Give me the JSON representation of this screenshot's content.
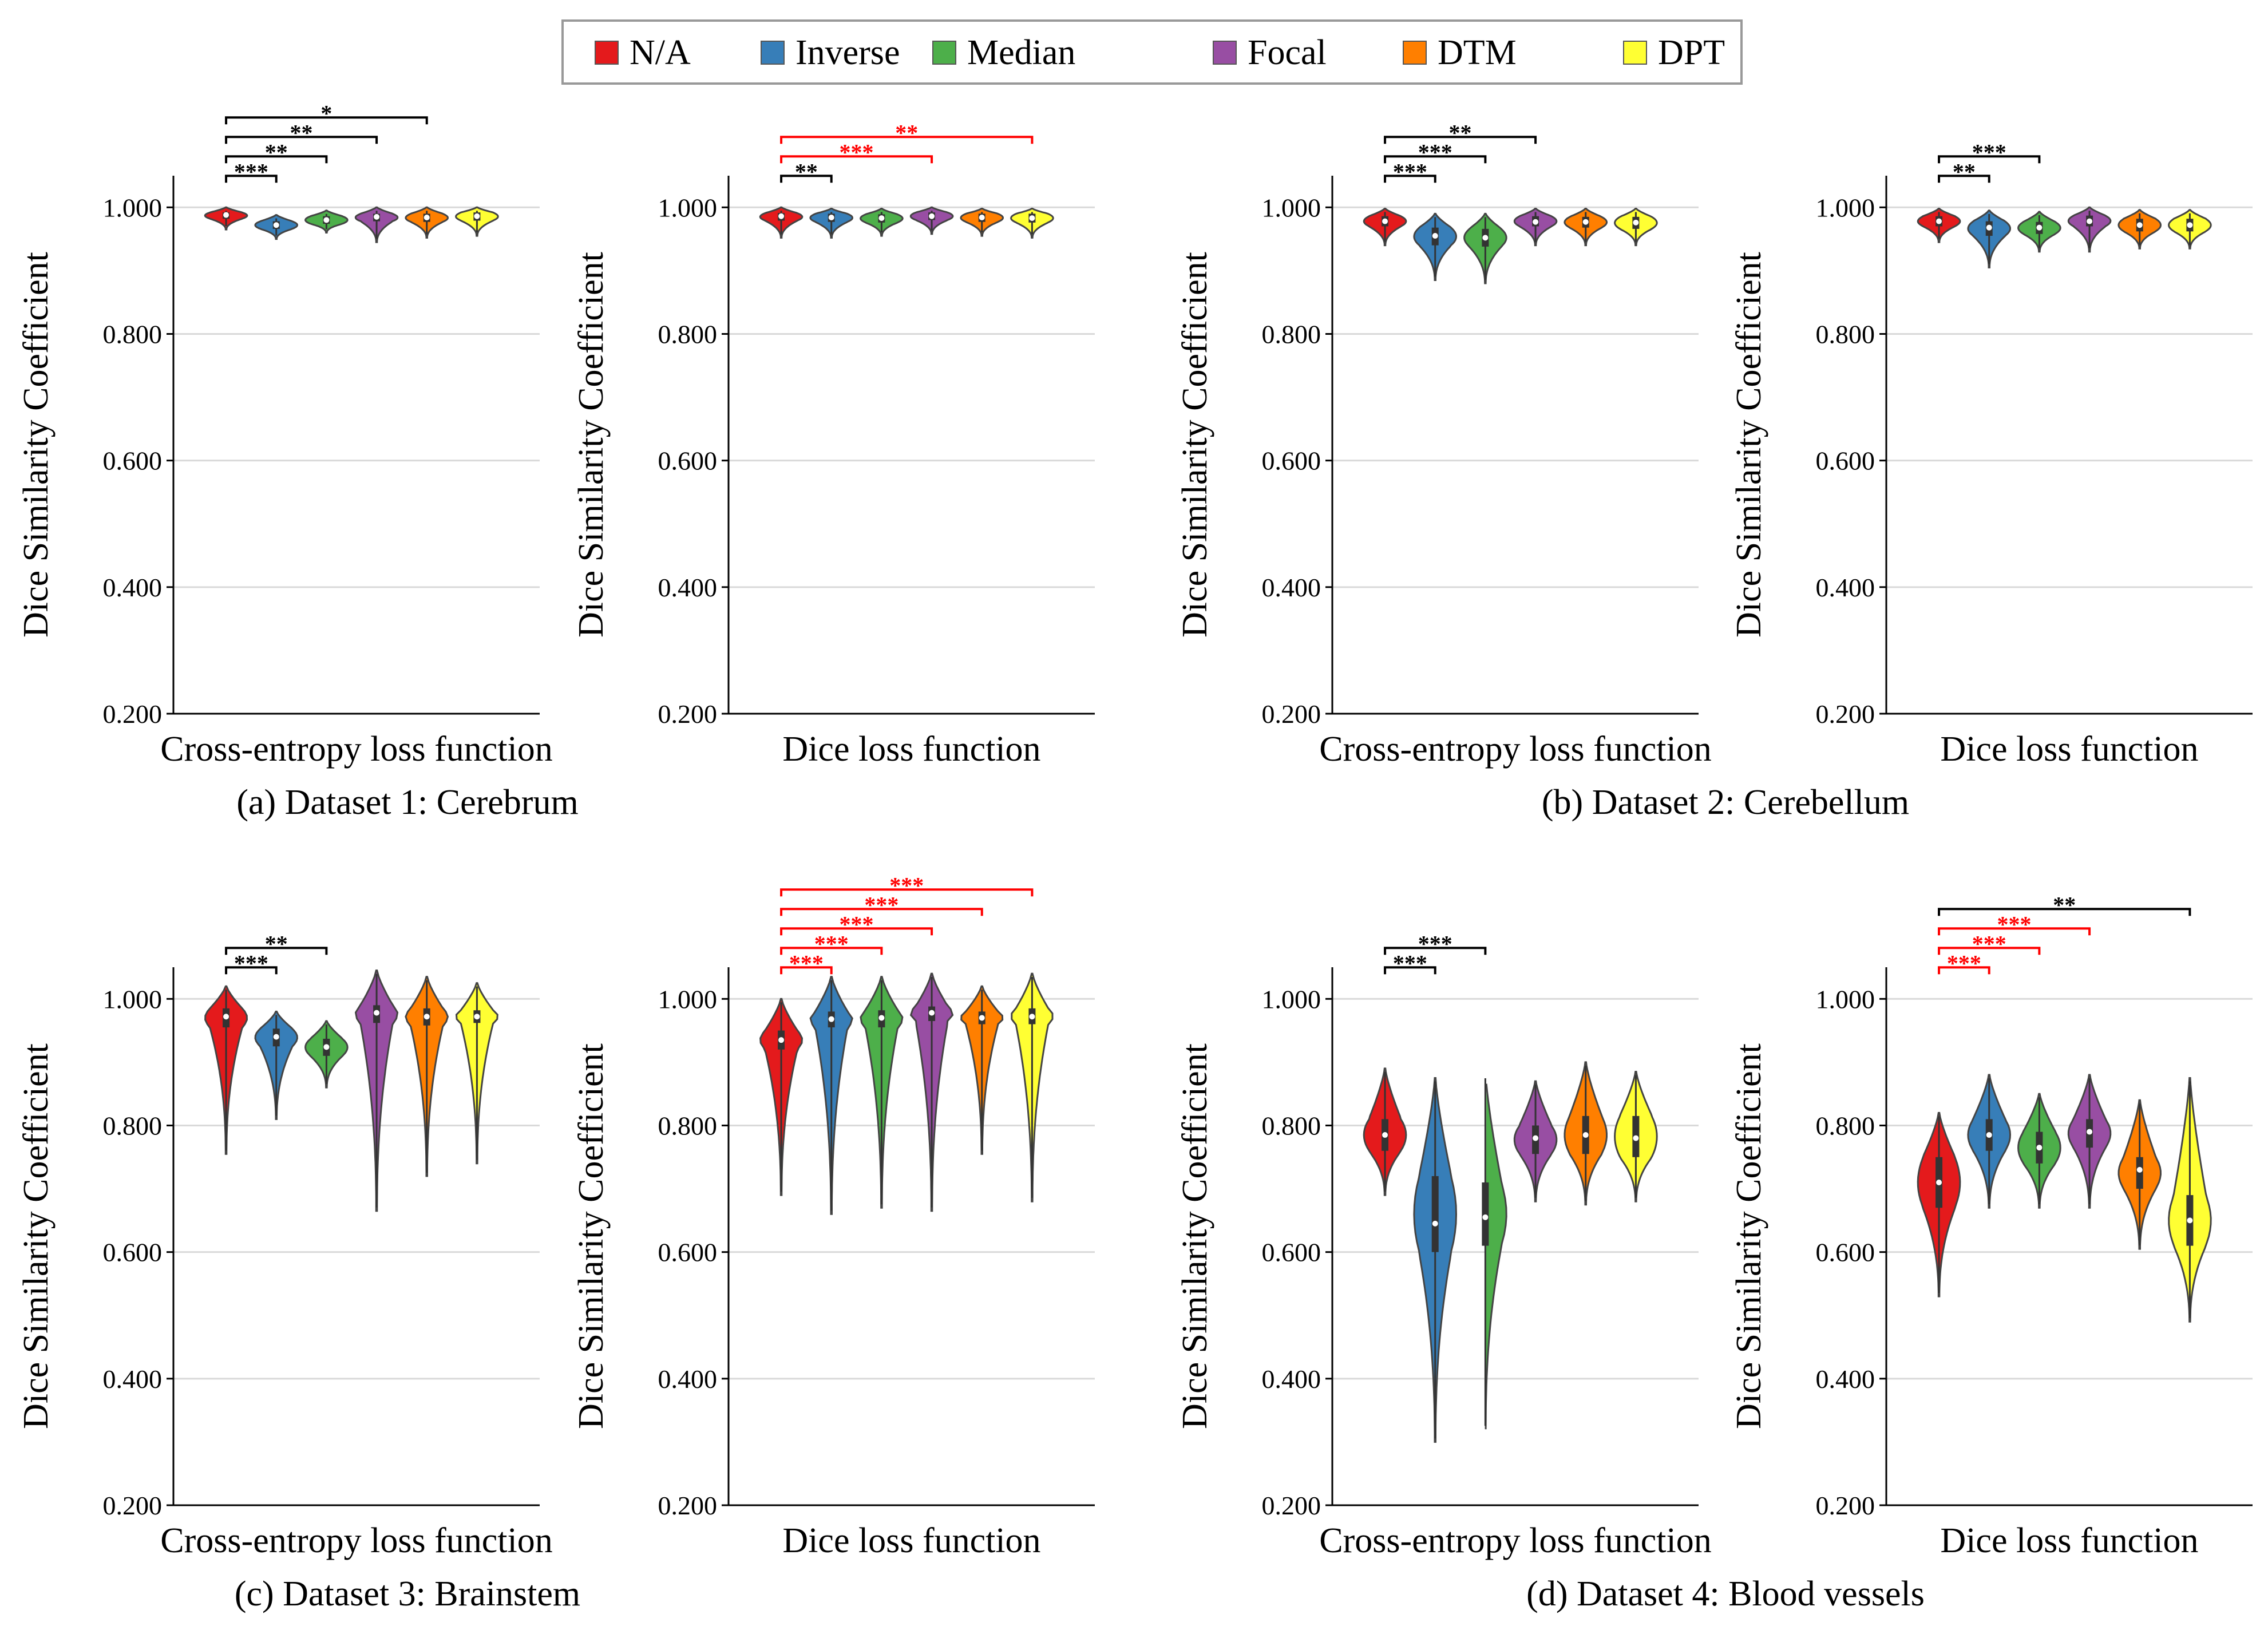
{
  "legend": [
    {
      "name": "N/A",
      "color": "#e41a1c"
    },
    {
      "name": "Inverse",
      "color": "#377eb8"
    },
    {
      "name": "Median",
      "color": "#4daf4a"
    },
    {
      "name": "Focal",
      "color": "#984ea3"
    },
    {
      "name": "DTM",
      "color": "#ff7f00"
    },
    {
      "name": "DPT",
      "color": "#ffff33"
    }
  ],
  "colors": {
    "highlight": "#ff0000",
    "normal": "#000000",
    "grid": "#d9d9d9"
  },
  "chart_data": [
    {
      "type": "violin",
      "caption": "(a) Dataset 1: Cerebrum",
      "xlabel": "Cross-entropy loss function",
      "ylabel": "Dice Similarity Coefficient",
      "ylim": [
        0.2,
        1.05
      ],
      "yticks": [
        "0.200",
        "0.400",
        "0.600",
        "0.800",
        "1.000"
      ],
      "grid": true,
      "series": [
        {
          "name": "N/A",
          "min": 0.965,
          "q1": 0.982,
          "median": 0.988,
          "q3": 0.992,
          "max": 1.0
        },
        {
          "name": "Inverse",
          "min": 0.95,
          "q1": 0.966,
          "median": 0.972,
          "q3": 0.978,
          "max": 0.988
        },
        {
          "name": "Median",
          "min": 0.96,
          "q1": 0.974,
          "median": 0.98,
          "q3": 0.986,
          "max": 0.995
        },
        {
          "name": "Focal",
          "min": 0.945,
          "q1": 0.978,
          "median": 0.985,
          "q3": 0.99,
          "max": 1.0
        },
        {
          "name": "DTM",
          "min": 0.952,
          "q1": 0.977,
          "median": 0.984,
          "q3": 0.99,
          "max": 1.0
        },
        {
          "name": "DPT",
          "min": 0.955,
          "q1": 0.979,
          "median": 0.986,
          "q3": 0.992,
          "max": 1.0
        }
      ],
      "significance": [
        {
          "from": 0,
          "to": 1,
          "label": "***",
          "color": "#000000"
        },
        {
          "from": 0,
          "to": 2,
          "label": "**",
          "color": "#000000"
        },
        {
          "from": 0,
          "to": 3,
          "label": "**",
          "color": "#000000"
        },
        {
          "from": 0,
          "to": 4,
          "label": "*",
          "color": "#000000"
        }
      ]
    },
    {
      "type": "violin",
      "caption": "",
      "xlabel": "Dice loss function",
      "ylabel": "Dice Similarity Coefficient",
      "ylim": [
        0.2,
        1.05
      ],
      "yticks": [
        "0.200",
        "0.400",
        "0.600",
        "0.800",
        "1.000"
      ],
      "grid": true,
      "series": [
        {
          "name": "N/A",
          "min": 0.952,
          "q1": 0.979,
          "median": 0.986,
          "q3": 0.991,
          "max": 1.0
        },
        {
          "name": "Inverse",
          "min": 0.952,
          "q1": 0.977,
          "median": 0.984,
          "q3": 0.99,
          "max": 0.998
        },
        {
          "name": "Median",
          "min": 0.955,
          "q1": 0.976,
          "median": 0.983,
          "q3": 0.989,
          "max": 0.998
        },
        {
          "name": "Focal",
          "min": 0.958,
          "q1": 0.98,
          "median": 0.986,
          "q3": 0.992,
          "max": 1.0
        },
        {
          "name": "DTM",
          "min": 0.955,
          "q1": 0.977,
          "median": 0.984,
          "q3": 0.99,
          "max": 0.998
        },
        {
          "name": "DPT",
          "min": 0.952,
          "q1": 0.976,
          "median": 0.983,
          "q3": 0.99,
          "max": 0.998
        }
      ],
      "significance": [
        {
          "from": 0,
          "to": 1,
          "label": "**",
          "color": "#000000"
        },
        {
          "from": 0,
          "to": 3,
          "label": "***",
          "color": "#ff0000"
        },
        {
          "from": 0,
          "to": 5,
          "label": "**",
          "color": "#ff0000"
        }
      ]
    },
    {
      "type": "violin",
      "caption": "(b) Dataset 2: Cerebellum",
      "xlabel": "Cross-entropy loss function",
      "ylabel": "Dice Similarity Coefficient",
      "ylim": [
        0.2,
        1.05
      ],
      "yticks": [
        "0.200",
        "0.400",
        "0.600",
        "0.800",
        "1.000"
      ],
      "grid": true,
      "series": [
        {
          "name": "N/A",
          "min": 0.94,
          "q1": 0.97,
          "median": 0.978,
          "q3": 0.986,
          "max": 0.998
        },
        {
          "name": "Inverse",
          "min": 0.885,
          "q1": 0.94,
          "median": 0.955,
          "q3": 0.968,
          "max": 0.99
        },
        {
          "name": "Median",
          "min": 0.88,
          "q1": 0.938,
          "median": 0.952,
          "q3": 0.966,
          "max": 0.99
        },
        {
          "name": "Focal",
          "min": 0.94,
          "q1": 0.97,
          "median": 0.977,
          "q3": 0.986,
          "max": 0.998
        },
        {
          "name": "DTM",
          "min": 0.94,
          "q1": 0.968,
          "median": 0.977,
          "q3": 0.985,
          "max": 0.998
        },
        {
          "name": "DPT",
          "min": 0.94,
          "q1": 0.966,
          "median": 0.976,
          "q3": 0.985,
          "max": 0.998
        }
      ],
      "significance": [
        {
          "from": 0,
          "to": 1,
          "label": "***",
          "color": "#000000"
        },
        {
          "from": 0,
          "to": 2,
          "label": "***",
          "color": "#000000"
        },
        {
          "from": 0,
          "to": 3,
          "label": "**",
          "color": "#000000"
        }
      ]
    },
    {
      "type": "violin",
      "caption": "",
      "xlabel": "Dice loss function",
      "ylabel": "Dice Similarity Coefficient",
      "ylim": [
        0.2,
        1.05
      ],
      "yticks": [
        "0.200",
        "0.400",
        "0.600",
        "0.800",
        "1.000"
      ],
      "grid": true,
      "series": [
        {
          "name": "N/A",
          "min": 0.945,
          "q1": 0.97,
          "median": 0.978,
          "q3": 0.986,
          "max": 0.998
        },
        {
          "name": "Inverse",
          "min": 0.905,
          "q1": 0.955,
          "median": 0.968,
          "q3": 0.978,
          "max": 0.995
        },
        {
          "name": "Median",
          "min": 0.93,
          "q1": 0.958,
          "median": 0.968,
          "q3": 0.977,
          "max": 0.993
        },
        {
          "name": "Focal",
          "min": 0.93,
          "q1": 0.97,
          "median": 0.978,
          "q3": 0.987,
          "max": 1.0
        },
        {
          "name": "DTM",
          "min": 0.935,
          "q1": 0.962,
          "median": 0.972,
          "q3": 0.982,
          "max": 0.996
        },
        {
          "name": "DPT",
          "min": 0.935,
          "q1": 0.962,
          "median": 0.972,
          "q3": 0.982,
          "max": 0.996
        }
      ],
      "significance": [
        {
          "from": 0,
          "to": 1,
          "label": "**",
          "color": "#000000"
        },
        {
          "from": 0,
          "to": 2,
          "label": "***",
          "color": "#000000"
        }
      ]
    },
    {
      "type": "violin",
      "caption": "(c) Dataset 3: Brainstem",
      "xlabel": "Cross-entropy loss function",
      "ylabel": "Dice Similarity Coefficient",
      "ylim": [
        0.2,
        1.05
      ],
      "yticks": [
        "0.200",
        "0.400",
        "0.600",
        "0.800",
        "1.000"
      ],
      "grid": true,
      "series": [
        {
          "name": "N/A",
          "min": 0.755,
          "q1": 0.955,
          "median": 0.972,
          "q3": 0.985,
          "max": 1.02
        },
        {
          "name": "Inverse",
          "min": 0.81,
          "q1": 0.925,
          "median": 0.94,
          "q3": 0.953,
          "max": 0.98
        },
        {
          "name": "Median",
          "min": 0.86,
          "q1": 0.91,
          "median": 0.924,
          "q3": 0.937,
          "max": 0.965
        },
        {
          "name": "Focal",
          "min": 0.665,
          "q1": 0.962,
          "median": 0.978,
          "q3": 0.99,
          "max": 1.045
        },
        {
          "name": "DTM",
          "min": 0.72,
          "q1": 0.958,
          "median": 0.972,
          "q3": 0.985,
          "max": 1.035
        },
        {
          "name": "DPT",
          "min": 0.74,
          "q1": 0.962,
          "median": 0.972,
          "q3": 0.982,
          "max": 1.025
        }
      ],
      "significance": [
        {
          "from": 0,
          "to": 1,
          "label": "***",
          "color": "#000000"
        },
        {
          "from": 0,
          "to": 2,
          "label": "**",
          "color": "#000000"
        }
      ]
    },
    {
      "type": "violin",
      "caption": "",
      "xlabel": "Dice loss function",
      "ylabel": "Dice Similarity Coefficient",
      "ylim": [
        0.2,
        1.05
      ],
      "yticks": [
        "0.200",
        "0.400",
        "0.600",
        "0.800",
        "1.000"
      ],
      "grid": true,
      "series": [
        {
          "name": "N/A",
          "min": 0.69,
          "q1": 0.92,
          "median": 0.935,
          "q3": 0.95,
          "max": 1.0
        },
        {
          "name": "Inverse",
          "min": 0.66,
          "q1": 0.955,
          "median": 0.968,
          "q3": 0.98,
          "max": 1.035
        },
        {
          "name": "Median",
          "min": 0.67,
          "q1": 0.955,
          "median": 0.97,
          "q3": 0.982,
          "max": 1.035
        },
        {
          "name": "Focal",
          "min": 0.665,
          "q1": 0.965,
          "median": 0.978,
          "q3": 0.988,
          "max": 1.04
        },
        {
          "name": "DTM",
          "min": 0.755,
          "q1": 0.96,
          "median": 0.97,
          "q3": 0.98,
          "max": 1.02
        },
        {
          "name": "DPT",
          "min": 0.68,
          "q1": 0.96,
          "median": 0.972,
          "q3": 0.985,
          "max": 1.04
        }
      ],
      "significance": [
        {
          "from": 0,
          "to": 1,
          "label": "***",
          "color": "#ff0000"
        },
        {
          "from": 0,
          "to": 2,
          "label": "***",
          "color": "#ff0000"
        },
        {
          "from": 0,
          "to": 3,
          "label": "***",
          "color": "#ff0000"
        },
        {
          "from": 0,
          "to": 4,
          "label": "***",
          "color": "#ff0000"
        },
        {
          "from": 0,
          "to": 5,
          "label": "***",
          "color": "#ff0000"
        }
      ]
    },
    {
      "type": "violin",
      "caption": "(d) Dataset 4: Blood vessels",
      "xlabel": "Cross-entropy loss function",
      "ylabel": "Dice Similarity Coefficient",
      "ylim": [
        0.2,
        1.05
      ],
      "yticks": [
        "0.200",
        "0.400",
        "0.600",
        "0.800",
        "1.000"
      ],
      "grid": true,
      "series": [
        {
          "name": "N/A",
          "min": 0.69,
          "q1": 0.76,
          "median": 0.785,
          "q3": 0.81,
          "max": 0.89
        },
        {
          "name": "Inverse",
          "min": 0.3,
          "q1": 0.6,
          "median": 0.645,
          "q3": 0.72,
          "max": 0.875
        },
        {
          "name": "Median",
          "min": 0.32,
          "q1": 0.61,
          "median": 0.655,
          "q3": 0.71,
          "max": 0.88
        },
        {
          "name": "Focal",
          "min": 0.68,
          "q1": 0.755,
          "median": 0.78,
          "q3": 0.8,
          "max": 0.87
        },
        {
          "name": "DTM",
          "min": 0.675,
          "q1": 0.755,
          "median": 0.785,
          "q3": 0.815,
          "max": 0.9
        },
        {
          "name": "DPT",
          "min": 0.68,
          "q1": 0.75,
          "median": 0.78,
          "q3": 0.815,
          "max": 0.885
        }
      ],
      "significance": [
        {
          "from": 0,
          "to": 1,
          "label": "***",
          "color": "#000000"
        },
        {
          "from": 0,
          "to": 2,
          "label": "***",
          "color": "#000000"
        }
      ]
    },
    {
      "type": "violin",
      "caption": "",
      "xlabel": "Dice loss function",
      "ylabel": "Dice Similarity Coefficient",
      "ylim": [
        0.2,
        1.05
      ],
      "yticks": [
        "0.200",
        "0.400",
        "0.600",
        "0.800",
        "1.000"
      ],
      "grid": true,
      "series": [
        {
          "name": "N/A",
          "min": 0.53,
          "q1": 0.67,
          "median": 0.71,
          "q3": 0.75,
          "max": 0.82
        },
        {
          "name": "Inverse",
          "min": 0.67,
          "q1": 0.76,
          "median": 0.785,
          "q3": 0.81,
          "max": 0.88
        },
        {
          "name": "Median",
          "min": 0.67,
          "q1": 0.74,
          "median": 0.765,
          "q3": 0.79,
          "max": 0.85
        },
        {
          "name": "Focal",
          "min": 0.67,
          "q1": 0.765,
          "median": 0.79,
          "q3": 0.81,
          "max": 0.88
        },
        {
          "name": "DTM",
          "min": 0.605,
          "q1": 0.7,
          "median": 0.73,
          "q3": 0.75,
          "max": 0.84
        },
        {
          "name": "DPT",
          "min": 0.49,
          "q1": 0.61,
          "median": 0.65,
          "q3": 0.69,
          "max": 0.875
        }
      ],
      "significance": [
        {
          "from": 0,
          "to": 1,
          "label": "***",
          "color": "#ff0000"
        },
        {
          "from": 0,
          "to": 2,
          "label": "***",
          "color": "#ff0000"
        },
        {
          "from": 0,
          "to": 3,
          "label": "***",
          "color": "#ff0000"
        },
        {
          "from": 0,
          "to": 5,
          "label": "**",
          "color": "#000000"
        }
      ]
    }
  ]
}
